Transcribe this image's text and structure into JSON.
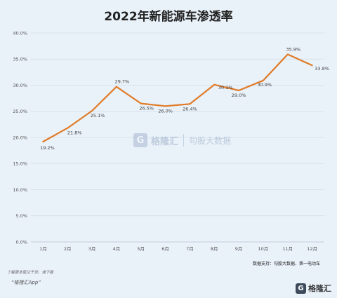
{
  "chart_data": {
    "type": "line",
    "title": "2022年新能源车渗透率",
    "categories": [
      "1月",
      "2月",
      "3月",
      "4月",
      "5月",
      "6月",
      "7月",
      "8月",
      "9月",
      "10月",
      "11月",
      "12月"
    ],
    "series": [
      {
        "values": [
          19.2,
          21.8,
          25.1,
          29.7,
          26.5,
          26.0,
          26.4,
          30.1,
          29.0,
          30.9,
          35.9,
          33.8
        ],
        "labels": [
          "19.2%",
          "21.8%",
          "25.1%",
          "29.7%",
          "26.5%",
          "26.0%",
          "26.4%",
          "30.1%",
          "29.0%",
          "30.9%",
          "35.9%",
          "33.8%"
        ]
      }
    ],
    "ylim": [
      0,
      40
    ],
    "yticks": [
      "0.0%",
      "5.0%",
      "10.0%",
      "15.0%",
      "20.0%",
      "25.0%",
      "30.0%",
      "35.0%",
      "40.0%"
    ],
    "grid": true,
    "line_color": "#e07b27",
    "source": "数据支持：勾股大数据、第一电动车"
  },
  "footer": {
    "note": "了解更多医文干货，请下载",
    "app": "“格隆汇App”"
  },
  "watermark": {
    "logo_glyph": "G",
    "brand": "格隆汇",
    "sub": "勾股大数据"
  },
  "brand": {
    "logo_glyph": "G",
    "name": "格隆汇"
  }
}
